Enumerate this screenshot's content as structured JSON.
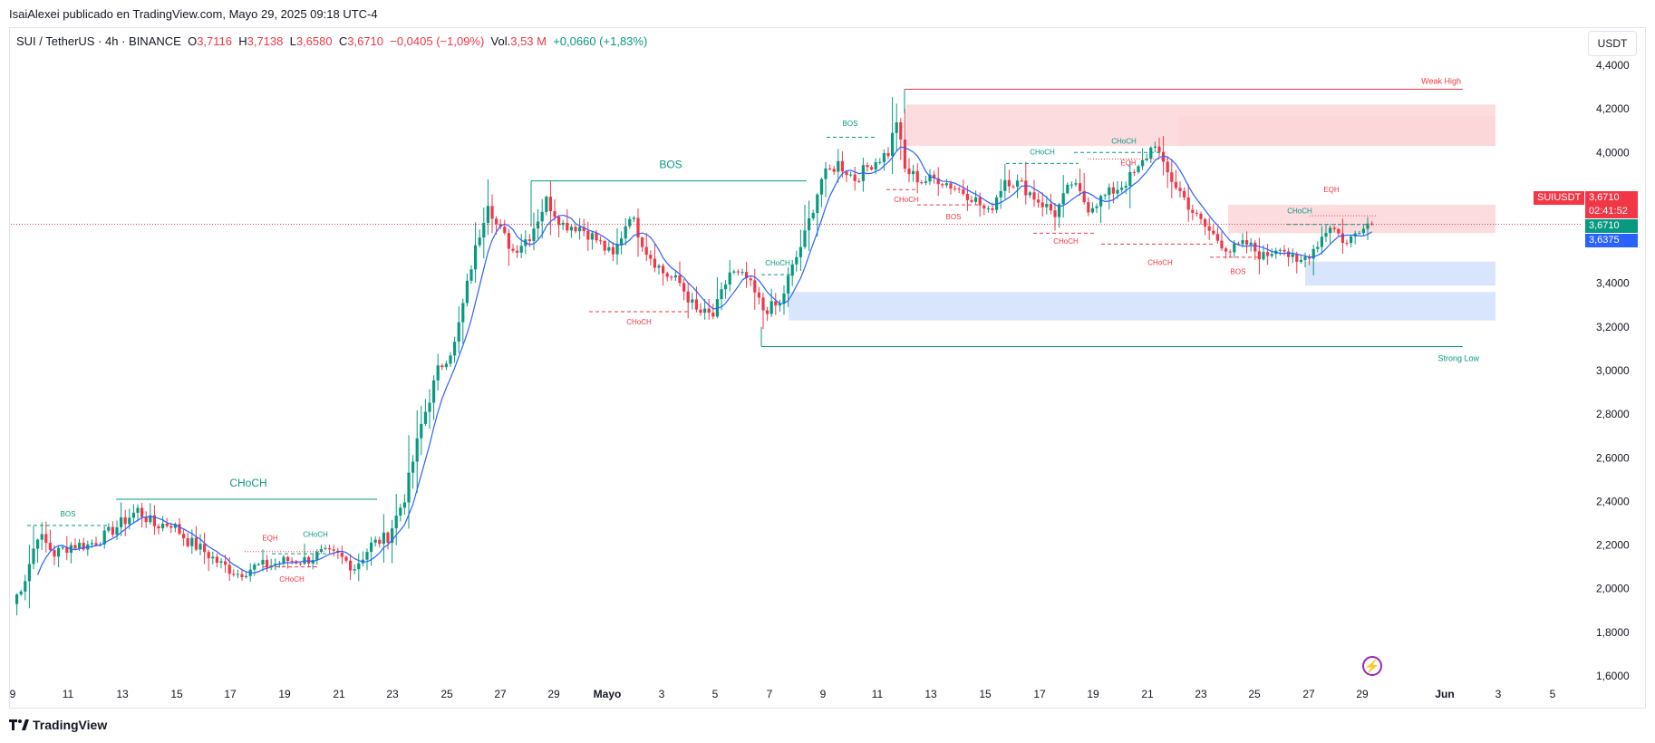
{
  "header": {
    "publisher": "IsaiAlexei publicado en TradingView.com, Mayo 29, 2025 09:18 UTC-4"
  },
  "legend": {
    "symbol": "SUI / TetherUS · 4h · BINANCE",
    "o_label": "O",
    "o": "3,7116",
    "h_label": "H",
    "h": "3,7138",
    "l_label": "L",
    "l": "3,6580",
    "c_label": "C",
    "c": "3,6710",
    "change": "−0,0405 (−1,09%)",
    "vol_label": "Vol.",
    "vol": "3,53 M",
    "vol_change": "+0,0660 (+1,83%)"
  },
  "currency_button": "USDT",
  "price_tags": {
    "symbol": "SUIUSDT",
    "last": "3,6710",
    "countdown": "02:41:52",
    "close_tag": "3,6710",
    "ma_tag": "3,6375"
  },
  "footer": {
    "brand": "TradingView"
  },
  "colors": {
    "up": "#089981",
    "down": "#f23645",
    "ma": "#2962ff",
    "supply": "#fbd3d6",
    "demand": "#d4e2fd"
  },
  "chart_data": {
    "type": "candlestick",
    "symbol": "SUI / TetherUS",
    "interval": "4h",
    "ylim": [
      1.55,
      4.45
    ],
    "y_ticks": [
      "4,4000",
      "4,2000",
      "4,0000",
      "3,8000",
      "3,6000",
      "3,4000",
      "3,2000",
      "3,0000",
      "2,8000",
      "2,6000",
      "2,4000",
      "2,2000",
      "2,0000",
      "1,8000",
      "1,6000"
    ],
    "y_tick_values": [
      4.4,
      4.2,
      4.0,
      3.8,
      3.6,
      3.4,
      3.2,
      3.0,
      2.8,
      2.6,
      2.4,
      2.2,
      2.0,
      1.8,
      1.6
    ],
    "x_ticks": [
      "9",
      "11",
      "13",
      "15",
      "17",
      "19",
      "21",
      "23",
      "25",
      "27",
      "29",
      "Mayo",
      "3",
      "5",
      "7",
      "9",
      "11",
      "13",
      "15",
      "17",
      "19",
      "21",
      "23",
      "25",
      "27",
      "29",
      "Jun",
      "3",
      "5"
    ],
    "last_price": 3.671,
    "price_anchors": [
      [
        0,
        1.93
      ],
      [
        3,
        2.05
      ],
      [
        6,
        2.25
      ],
      [
        10,
        2.16
      ],
      [
        14,
        2.2
      ],
      [
        18,
        2.2
      ],
      [
        22,
        2.24
      ],
      [
        26,
        2.3
      ],
      [
        30,
        2.36
      ],
      [
        34,
        2.29
      ],
      [
        38,
        2.3
      ],
      [
        42,
        2.22
      ],
      [
        46,
        2.17
      ],
      [
        50,
        2.11
      ],
      [
        54,
        2.07
      ],
      [
        58,
        2.1
      ],
      [
        62,
        2.11
      ],
      [
        66,
        2.13
      ],
      [
        70,
        2.13
      ],
      [
        74,
        2.16
      ],
      [
        78,
        2.15
      ],
      [
        82,
        2.1
      ],
      [
        86,
        2.2
      ],
      [
        90,
        2.24
      ],
      [
        94,
        2.42
      ],
      [
        98,
        2.75
      ],
      [
        102,
        3.0
      ],
      [
        106,
        3.12
      ],
      [
        110,
        3.48
      ],
      [
        114,
        3.78
      ],
      [
        116,
        3.67
      ],
      [
        120,
        3.55
      ],
      [
        124,
        3.62
      ],
      [
        128,
        3.78
      ],
      [
        132,
        3.67
      ],
      [
        136,
        3.66
      ],
      [
        140,
        3.6
      ],
      [
        144,
        3.52
      ],
      [
        148,
        3.72
      ],
      [
        152,
        3.55
      ],
      [
        156,
        3.45
      ],
      [
        160,
        3.4
      ],
      [
        164,
        3.27
      ],
      [
        168,
        3.25
      ],
      [
        172,
        3.45
      ],
      [
        176,
        3.42
      ],
      [
        180,
        3.28
      ],
      [
        184,
        3.3
      ],
      [
        186,
        3.42
      ],
      [
        190,
        3.62
      ],
      [
        194,
        3.88
      ],
      [
        198,
        3.95
      ],
      [
        202,
        3.88
      ],
      [
        206,
        3.95
      ],
      [
        210,
        4.0
      ],
      [
        212,
        4.15
      ],
      [
        214,
        3.92
      ],
      [
        218,
        3.87
      ],
      [
        222,
        3.88
      ],
      [
        226,
        3.84
      ],
      [
        230,
        3.8
      ],
      [
        234,
        3.72
      ],
      [
        238,
        3.88
      ],
      [
        242,
        3.85
      ],
      [
        246,
        3.78
      ],
      [
        250,
        3.72
      ],
      [
        254,
        3.86
      ],
      [
        258,
        3.75
      ],
      [
        262,
        3.8
      ],
      [
        266,
        3.85
      ],
      [
        270,
        3.92
      ],
      [
        274,
        4.05
      ],
      [
        276,
        3.93
      ],
      [
        280,
        3.82
      ],
      [
        284,
        3.7
      ],
      [
        288,
        3.62
      ],
      [
        292,
        3.55
      ],
      [
        296,
        3.58
      ],
      [
        300,
        3.52
      ],
      [
        304,
        3.58
      ],
      [
        308,
        3.48
      ],
      [
        312,
        3.56
      ],
      [
        316,
        3.67
      ],
      [
        320,
        3.58
      ],
      [
        324,
        3.68
      ],
      [
        326,
        3.67
      ]
    ],
    "moving_average": "single line (blue)",
    "zones": [
      {
        "kind": "supply",
        "top": 4.22,
        "bottom": 4.03
      },
      {
        "kind": "supply",
        "top": 4.17,
        "bottom": 4.03
      },
      {
        "kind": "supply",
        "top": 3.76,
        "bottom": 3.63
      },
      {
        "kind": "demand",
        "top": 3.5,
        "bottom": 3.39
      },
      {
        "kind": "demand",
        "top": 3.36,
        "bottom": 3.23
      }
    ],
    "annotations": [
      {
        "text": "Weak High",
        "price": 4.29
      },
      {
        "text": "Strong Low",
        "price": 3.11
      },
      {
        "text": "BOS",
        "price": 3.87
      },
      {
        "text": "CHoCH",
        "price": 2.41
      },
      {
        "text": "BOS",
        "price": 2.29
      },
      {
        "text": "EQH",
        "price": 2.18
      },
      {
        "text": "CHoCH",
        "price": 2.18
      },
      {
        "text": "CHoCH",
        "price": 2.09
      },
      {
        "text": "CHoCH",
        "price": 3.27
      },
      {
        "text": "CHoCH",
        "price": 3.44
      },
      {
        "text": "BOS",
        "price": 4.08
      },
      {
        "text": "CHoCH",
        "price": 3.83
      },
      {
        "text": "BOS",
        "price": 3.76
      },
      {
        "text": "CHoCH",
        "price": 3.95
      },
      {
        "text": "CHoCH",
        "price": 3.64
      },
      {
        "text": "CHoCH",
        "price": 4.0
      },
      {
        "text": "EQH",
        "price": 3.99
      },
      {
        "text": "CHoCH",
        "price": 3.55
      },
      {
        "text": "BOS",
        "price": 3.5
      },
      {
        "text": "EQH",
        "price": 3.71
      },
      {
        "text": "CHoCH",
        "price": 3.68
      }
    ]
  }
}
